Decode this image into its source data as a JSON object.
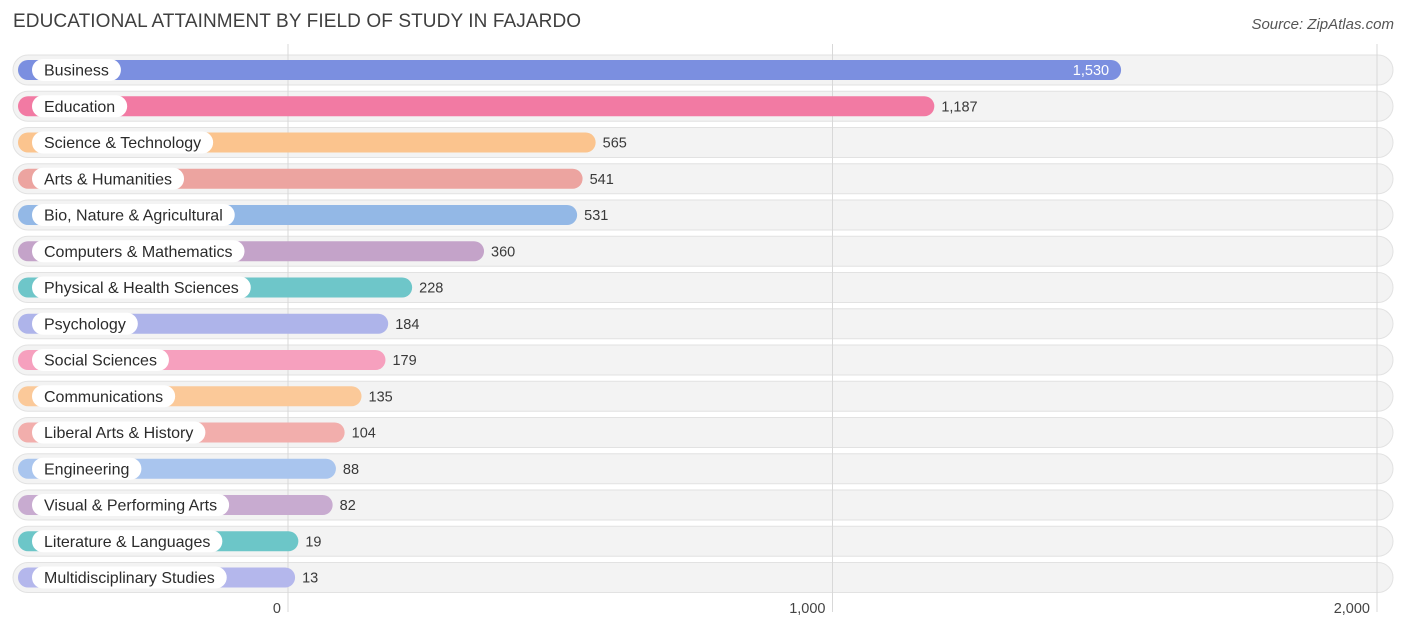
{
  "header": {
    "title": "EDUCATIONAL ATTAINMENT BY FIELD OF STUDY IN FAJARDO",
    "source": "Source: ZipAtlas.com"
  },
  "chart_data": {
    "type": "bar",
    "orientation": "horizontal",
    "title": "EDUCATIONAL ATTAINMENT BY FIELD OF STUDY IN FAJARDO",
    "xlabel": "",
    "ylabel": "",
    "xlim": [
      0,
      2000
    ],
    "xticks": [
      0,
      1000,
      2000
    ],
    "xtick_labels": [
      "0",
      "1,000",
      "2,000"
    ],
    "grid": true,
    "categories": [
      "Business",
      "Education",
      "Science & Technology",
      "Arts & Humanities",
      "Bio, Nature & Agricultural",
      "Computers & Mathematics",
      "Physical & Health Sciences",
      "Psychology",
      "Social Sciences",
      "Communications",
      "Liberal Arts & History",
      "Engineering",
      "Visual & Performing Arts",
      "Literature & Languages",
      "Multidisciplinary Studies"
    ],
    "values": [
      1530,
      1187,
      565,
      541,
      531,
      360,
      228,
      184,
      179,
      135,
      104,
      88,
      82,
      19,
      13
    ],
    "value_labels": [
      "1,530",
      "1,187",
      "565",
      "541",
      "531",
      "360",
      "228",
      "184",
      "179",
      "135",
      "104",
      "88",
      "82",
      "19",
      "13"
    ],
    "colors": [
      "#7b8fe0",
      "#f27aa3",
      "#fbc48e",
      "#eca4a0",
      "#93b8e6",
      "#c4a3c9",
      "#6ec6c9",
      "#aeb4ea",
      "#f6a0be",
      "#fbc999",
      "#f2aeac",
      "#a9c5ee",
      "#c8abd0",
      "#6cc6c8",
      "#b4b7ec"
    ]
  }
}
